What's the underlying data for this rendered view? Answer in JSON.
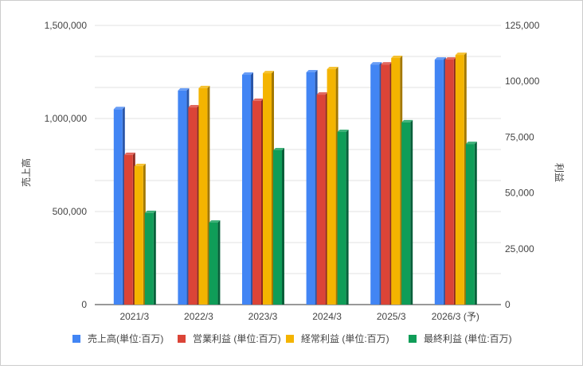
{
  "chart_data": {
    "type": "bar",
    "title": "",
    "categories": [
      "2021/3",
      "2022/3",
      "2023/3",
      "2024/3",
      "2025/3",
      "2026/3 (予)"
    ],
    "ylabel": "売上高",
    "y2label": "利益",
    "ylim": [
      0,
      1500000
    ],
    "y2lim": [
      0,
      125000
    ],
    "yticks": [
      "0",
      "500,000",
      "1,000,000",
      "1,500,000"
    ],
    "y2ticks": [
      "0",
      "25,000",
      "50,000",
      "75,000",
      "100,000",
      "125,000"
    ],
    "grid": true,
    "legend_position": "bottom",
    "series": [
      {
        "name": "売上高(単位:百万)",
        "axis": "left",
        "color": "#4285f4",
        "side": "#2a56a8",
        "values": [
          1050000,
          1150000,
          1235000,
          1248000,
          1290000,
          1316000
        ]
      },
      {
        "name": "営業利益 (単位:百万)",
        "axis": "right",
        "color": "#db4437",
        "side": "#8e2a21",
        "values": [
          67000,
          88300,
          91200,
          94000,
          107500,
          109700
        ]
      },
      {
        "name": "経常利益 (単位:百万)",
        "axis": "right",
        "color": "#f4b400",
        "side": "#a37800",
        "values": [
          62000,
          96900,
          103600,
          105400,
          110400,
          111800
        ]
      },
      {
        "name": "最終利益 (単位:百万)",
        "axis": "right",
        "color": "#0f9d58",
        "side": "#07603a",
        "values": [
          41000,
          36700,
          69100,
          77300,
          81600,
          71900
        ]
      }
    ]
  }
}
